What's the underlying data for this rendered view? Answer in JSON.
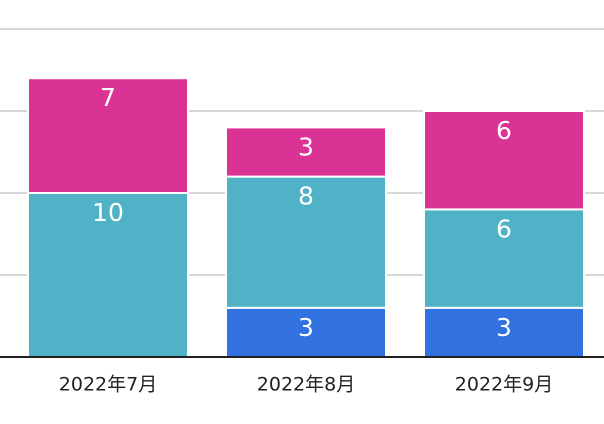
{
  "chart_data": {
    "type": "stacked-bar",
    "categories": [
      "2022年7月",
      "2022年8月",
      "2022年9月"
    ],
    "series": [
      {
        "color": "#3171e0",
        "values": [
          null,
          3,
          3
        ]
      },
      {
        "color": "#4fb2c6",
        "values": [
          10,
          8,
          6
        ]
      },
      {
        "color": "#db3296",
        "values": [
          7,
          3,
          6
        ]
      }
    ],
    "ylim": [
      0,
      20
    ],
    "yticks": [
      0,
      5,
      10,
      15,
      20
    ],
    "grid": true
  }
}
